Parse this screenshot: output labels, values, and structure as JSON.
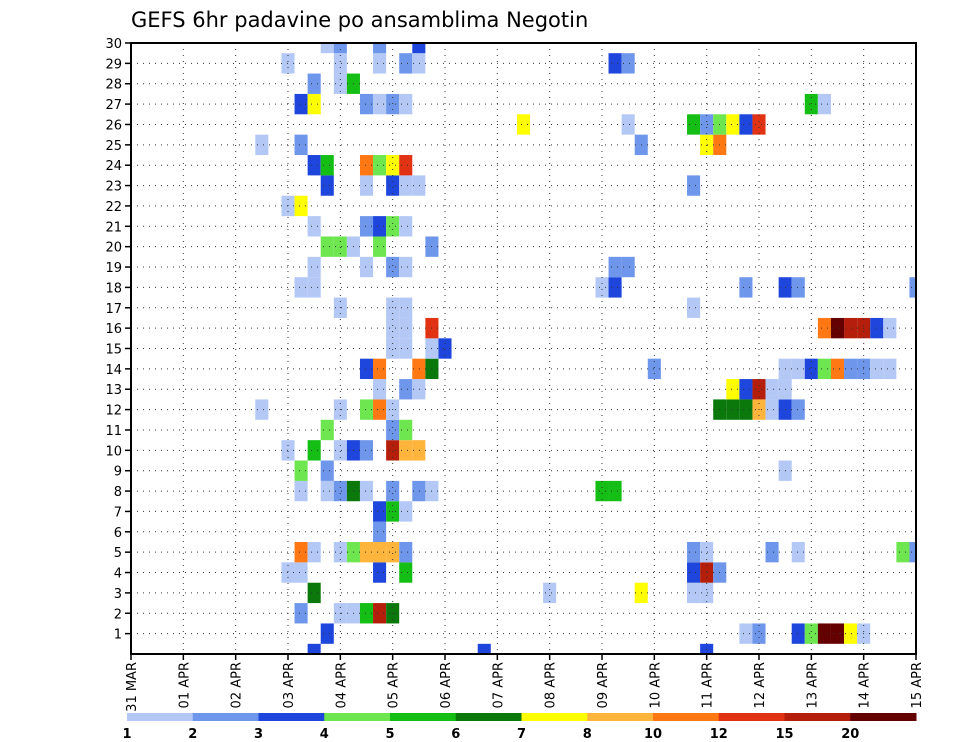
{
  "chart_data": {
    "type": "heatmap",
    "title": "GEFS 6hr padavine po ansamblima Negotin",
    "xlabel": "",
    "ylabel": "",
    "x_tick_labels": [
      "31 MAR",
      "01 APR",
      "02 APR",
      "03 APR",
      "04 APR",
      "05 APR",
      "06 APR",
      "07 APR",
      "08 APR",
      "09 APR",
      "10 APR",
      "11 APR",
      "12 APR",
      "13 APR",
      "14 APR",
      "15 APR"
    ],
    "y_tick_labels": [
      "1",
      "2",
      "3",
      "4",
      "5",
      "6",
      "7",
      "8",
      "9",
      "10",
      "11",
      "12",
      "13",
      "14",
      "15",
      "16",
      "17",
      "18",
      "19",
      "20",
      "21",
      "22",
      "23",
      "24",
      "25",
      "26",
      "27",
      "28",
      "29",
      "30"
    ],
    "xlim": [
      0,
      60
    ],
    "ylim": [
      0,
      30
    ],
    "grid": true,
    "legend": {
      "placement": "bottom",
      "labels": [
        "1",
        "2",
        "3",
        "4",
        "5",
        "6",
        "7",
        "8",
        "10",
        "12",
        "15",
        "20"
      ],
      "colors": [
        "#b4c8f5",
        "#6e96eb",
        "#1e46dc",
        "#6ee650",
        "#14be14",
        "#0a780a",
        "#ffff00",
        "#ffb43c",
        "#ff7814",
        "#e13214",
        "#b41e0a",
        "#640000"
      ]
    },
    "cells": [
      [
        14,
        0,
        2
      ],
      [
        27,
        0,
        2
      ],
      [
        44,
        0,
        2
      ],
      [
        15,
        1,
        2
      ],
      [
        47,
        1,
        0
      ],
      [
        48,
        1,
        1
      ],
      [
        51,
        1,
        2
      ],
      [
        52,
        1,
        3
      ],
      [
        53,
        1,
        11
      ],
      [
        54,
        1,
        11
      ],
      [
        55,
        1,
        6
      ],
      [
        56,
        1,
        0
      ],
      [
        13,
        2,
        1
      ],
      [
        16,
        2,
        0
      ],
      [
        17,
        2,
        0
      ],
      [
        18,
        2,
        4
      ],
      [
        19,
        2,
        10
      ],
      [
        20,
        2,
        5
      ],
      [
        14,
        3,
        5
      ],
      [
        32,
        3,
        0
      ],
      [
        39,
        3,
        6
      ],
      [
        43,
        3,
        0
      ],
      [
        44,
        3,
        0
      ],
      [
        12,
        4,
        0
      ],
      [
        13,
        4,
        0
      ],
      [
        19,
        4,
        2
      ],
      [
        21,
        4,
        4
      ],
      [
        43,
        4,
        2
      ],
      [
        44,
        4,
        10
      ],
      [
        45,
        4,
        1
      ],
      [
        13,
        5,
        8
      ],
      [
        14,
        5,
        0
      ],
      [
        16,
        5,
        0
      ],
      [
        17,
        5,
        3
      ],
      [
        18,
        5,
        7
      ],
      [
        19,
        5,
        7
      ],
      [
        20,
        5,
        7
      ],
      [
        21,
        5,
        1
      ],
      [
        43,
        5,
        1
      ],
      [
        44,
        5,
        0
      ],
      [
        49,
        5,
        1
      ],
      [
        51,
        5,
        0
      ],
      [
        59,
        5,
        3
      ],
      [
        60,
        5,
        1
      ],
      [
        19,
        6,
        1
      ],
      [
        19,
        7,
        2
      ],
      [
        20,
        7,
        4
      ],
      [
        21,
        7,
        0
      ],
      [
        13,
        8,
        0
      ],
      [
        15,
        8,
        0
      ],
      [
        16,
        8,
        1
      ],
      [
        17,
        8,
        5
      ],
      [
        18,
        8,
        0
      ],
      [
        20,
        8,
        1
      ],
      [
        22,
        8,
        1
      ],
      [
        23,
        8,
        0
      ],
      [
        36,
        8,
        4
      ],
      [
        37,
        8,
        4
      ],
      [
        13,
        9,
        3
      ],
      [
        15,
        9,
        1
      ],
      [
        50,
        9,
        0
      ],
      [
        12,
        10,
        0
      ],
      [
        14,
        10,
        4
      ],
      [
        16,
        10,
        0
      ],
      [
        17,
        10,
        2
      ],
      [
        18,
        10,
        1
      ],
      [
        20,
        10,
        10
      ],
      [
        21,
        10,
        7
      ],
      [
        22,
        10,
        7
      ],
      [
        15,
        11,
        3
      ],
      [
        20,
        11,
        1
      ],
      [
        21,
        11,
        3
      ],
      [
        10,
        12,
        0
      ],
      [
        16,
        12,
        0
      ],
      [
        18,
        12,
        3
      ],
      [
        19,
        12,
        8
      ],
      [
        20,
        12,
        0
      ],
      [
        45,
        12,
        5
      ],
      [
        46,
        12,
        5
      ],
      [
        47,
        12,
        5
      ],
      [
        48,
        12,
        7
      ],
      [
        49,
        12,
        0
      ],
      [
        50,
        12,
        2
      ],
      [
        51,
        12,
        1
      ],
      [
        19,
        13,
        0
      ],
      [
        21,
        13,
        1
      ],
      [
        22,
        13,
        0
      ],
      [
        46,
        13,
        6
      ],
      [
        47,
        13,
        2
      ],
      [
        48,
        13,
        10
      ],
      [
        49,
        13,
        0
      ],
      [
        50,
        13,
        0
      ],
      [
        18,
        14,
        2
      ],
      [
        19,
        14,
        8
      ],
      [
        22,
        14,
        8
      ],
      [
        23,
        14,
        5
      ],
      [
        40,
        14,
        1
      ],
      [
        50,
        14,
        0
      ],
      [
        51,
        14,
        0
      ],
      [
        52,
        14,
        2
      ],
      [
        53,
        14,
        3
      ],
      [
        54,
        14,
        8
      ],
      [
        55,
        14,
        1
      ],
      [
        56,
        14,
        1
      ],
      [
        57,
        14,
        0
      ],
      [
        58,
        14,
        0
      ],
      [
        20,
        15,
        0
      ],
      [
        21,
        15,
        0
      ],
      [
        23,
        15,
        0
      ],
      [
        24,
        15,
        2
      ],
      [
        20,
        16,
        0
      ],
      [
        21,
        16,
        0
      ],
      [
        23,
        16,
        9
      ],
      [
        53,
        16,
        8
      ],
      [
        54,
        16,
        11
      ],
      [
        55,
        16,
        10
      ],
      [
        56,
        16,
        10
      ],
      [
        57,
        16,
        2
      ],
      [
        58,
        16,
        0
      ],
      [
        16,
        17,
        0
      ],
      [
        20,
        17,
        0
      ],
      [
        21,
        17,
        0
      ],
      [
        43,
        17,
        0
      ],
      [
        13,
        18,
        0
      ],
      [
        14,
        18,
        0
      ],
      [
        36,
        18,
        0
      ],
      [
        37,
        18,
        2
      ],
      [
        47,
        18,
        1
      ],
      [
        50,
        18,
        2
      ],
      [
        51,
        18,
        1
      ],
      [
        60,
        18,
        1
      ],
      [
        14,
        19,
        0
      ],
      [
        18,
        19,
        0
      ],
      [
        20,
        19,
        1
      ],
      [
        21,
        19,
        0
      ],
      [
        37,
        19,
        1
      ],
      [
        38,
        19,
        1
      ],
      [
        15,
        20,
        3
      ],
      [
        16,
        20,
        3
      ],
      [
        17,
        20,
        0
      ],
      [
        19,
        20,
        3
      ],
      [
        23,
        20,
        1
      ],
      [
        14,
        21,
        0
      ],
      [
        18,
        21,
        1
      ],
      [
        19,
        21,
        2
      ],
      [
        20,
        21,
        3
      ],
      [
        21,
        21,
        0
      ],
      [
        12,
        22,
        0
      ],
      [
        13,
        22,
        6
      ],
      [
        15,
        23,
        2
      ],
      [
        18,
        23,
        0
      ],
      [
        20,
        23,
        2
      ],
      [
        21,
        23,
        0
      ],
      [
        22,
        23,
        0
      ],
      [
        43,
        23,
        1
      ],
      [
        14,
        24,
        2
      ],
      [
        15,
        24,
        4
      ],
      [
        18,
        24,
        8
      ],
      [
        19,
        24,
        3
      ],
      [
        20,
        24,
        6
      ],
      [
        21,
        24,
        9
      ],
      [
        10,
        25,
        0
      ],
      [
        13,
        25,
        1
      ],
      [
        39,
        25,
        1
      ],
      [
        44,
        25,
        6
      ],
      [
        45,
        25,
        8
      ],
      [
        30,
        26,
        6
      ],
      [
        38,
        26,
        0
      ],
      [
        43,
        26,
        4
      ],
      [
        44,
        26,
        1
      ],
      [
        45,
        26,
        3
      ],
      [
        46,
        26,
        6
      ],
      [
        47,
        26,
        2
      ],
      [
        48,
        26,
        9
      ],
      [
        13,
        27,
        2
      ],
      [
        14,
        27,
        6
      ],
      [
        18,
        27,
        1
      ],
      [
        19,
        27,
        0
      ],
      [
        20,
        27,
        1
      ],
      [
        21,
        27,
        0
      ],
      [
        52,
        27,
        4
      ],
      [
        53,
        27,
        0
      ],
      [
        14,
        28,
        1
      ],
      [
        16,
        28,
        0
      ],
      [
        17,
        28,
        4
      ],
      [
        12,
        29,
        0
      ],
      [
        16,
        29,
        0
      ],
      [
        19,
        29,
        0
      ],
      [
        21,
        29,
        1
      ],
      [
        22,
        29,
        0
      ],
      [
        37,
        29,
        2
      ],
      [
        38,
        29,
        1
      ],
      [
        15,
        30,
        0
      ],
      [
        16,
        30,
        1
      ],
      [
        19,
        30,
        1
      ],
      [
        22,
        30,
        2
      ]
    ]
  }
}
